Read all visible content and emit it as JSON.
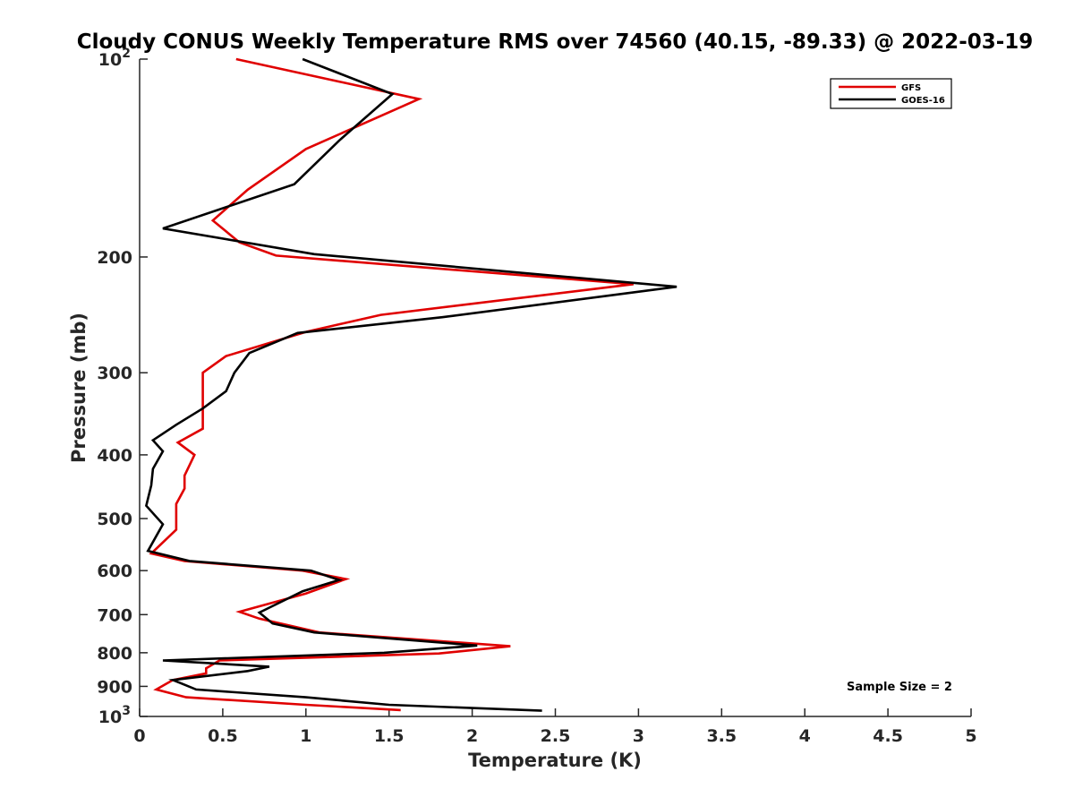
{
  "chart_data": {
    "type": "line",
    "title": "Cloudy CONUS Weekly Temperature RMS over 74560 (40.15, -89.33) @ 2022-03-19",
    "xlabel": "Temperature (K)",
    "ylabel": "Pressure (mb)",
    "xlim": [
      0,
      5
    ],
    "ylim": [
      100,
      1000
    ],
    "y_scale": "log",
    "y_reversed": true,
    "grid": false,
    "legend_position": "top-right",
    "x_ticks": [
      0,
      0.5,
      1,
      1.5,
      2,
      2.5,
      3,
      3.5,
      4,
      4.5,
      5
    ],
    "x_tick_labels": [
      "0",
      "0.5",
      "1",
      "1.5",
      "2",
      "2.5",
      "3",
      "3.5",
      "4",
      "4.5",
      "5"
    ],
    "y_ticks": [
      {
        "value": 100,
        "label": "10",
        "exp": "2"
      },
      {
        "value": 200,
        "label": "200",
        "exp": ""
      },
      {
        "value": 300,
        "label": "300",
        "exp": ""
      },
      {
        "value": 400,
        "label": "400",
        "exp": ""
      },
      {
        "value": 500,
        "label": "500",
        "exp": ""
      },
      {
        "value": 600,
        "label": "600",
        "exp": ""
      },
      {
        "value": 700,
        "label": "700",
        "exp": ""
      },
      {
        "value": 800,
        "label": "800",
        "exp": ""
      },
      {
        "value": 900,
        "label": "900",
        "exp": ""
      },
      {
        "value": 1000,
        "label": "10",
        "exp": "3"
      }
    ],
    "series": [
      {
        "name": "GFS",
        "color": "#e00000",
        "points": [
          [
            0.58,
            100
          ],
          [
            1.68,
            115
          ],
          [
            1.0,
            137
          ],
          [
            0.65,
            158
          ],
          [
            0.44,
            176
          ],
          [
            0.6,
            190
          ],
          [
            0.82,
            199
          ],
          [
            2.97,
            220
          ],
          [
            1.45,
            245
          ],
          [
            1.0,
            260
          ],
          [
            0.52,
            283
          ],
          [
            0.38,
            300
          ],
          [
            0.38,
            325
          ],
          [
            0.38,
            365
          ],
          [
            0.23,
            383
          ],
          [
            0.33,
            400
          ],
          [
            0.27,
            430
          ],
          [
            0.27,
            450
          ],
          [
            0.22,
            475
          ],
          [
            0.22,
            500
          ],
          [
            0.22,
            520
          ],
          [
            0.07,
            565
          ],
          [
            0.27,
            580
          ],
          [
            0.98,
            600
          ],
          [
            1.24,
            618
          ],
          [
            1.0,
            650
          ],
          [
            0.6,
            693
          ],
          [
            0.72,
            710
          ],
          [
            1.08,
            745
          ],
          [
            2.23,
            782
          ],
          [
            1.8,
            802
          ],
          [
            0.48,
            822
          ],
          [
            0.4,
            845
          ],
          [
            0.4,
            860
          ],
          [
            0.2,
            880
          ],
          [
            0.1,
            910
          ],
          [
            0.28,
            935
          ],
          [
            1.0,
            960
          ],
          [
            1.57,
            978
          ]
        ]
      },
      {
        "name": "GOES-16",
        "color": "#000000",
        "points": [
          [
            0.98,
            100
          ],
          [
            1.52,
            113
          ],
          [
            1.2,
            133
          ],
          [
            0.93,
            155
          ],
          [
            0.14,
            181
          ],
          [
            1.05,
            198
          ],
          [
            3.23,
            222
          ],
          [
            1.82,
            247
          ],
          [
            0.95,
            261
          ],
          [
            0.66,
            280
          ],
          [
            0.57,
            300
          ],
          [
            0.52,
            320
          ],
          [
            0.38,
            340
          ],
          [
            0.22,
            360
          ],
          [
            0.08,
            380
          ],
          [
            0.14,
            395
          ],
          [
            0.08,
            420
          ],
          [
            0.07,
            445
          ],
          [
            0.04,
            478
          ],
          [
            0.14,
            510
          ],
          [
            0.05,
            560
          ],
          [
            0.3,
            580
          ],
          [
            1.03,
            600
          ],
          [
            1.2,
            620
          ],
          [
            0.98,
            645
          ],
          [
            0.72,
            695
          ],
          [
            0.8,
            722
          ],
          [
            1.05,
            745
          ],
          [
            2.03,
            780
          ],
          [
            1.47,
            800
          ],
          [
            0.14,
            822
          ],
          [
            0.78,
            840
          ],
          [
            0.65,
            853
          ],
          [
            0.2,
            880
          ],
          [
            0.34,
            910
          ],
          [
            1.0,
            935
          ],
          [
            1.5,
            960
          ],
          [
            2.42,
            980
          ]
        ]
      }
    ],
    "annotation": "Sample Size = 2"
  }
}
